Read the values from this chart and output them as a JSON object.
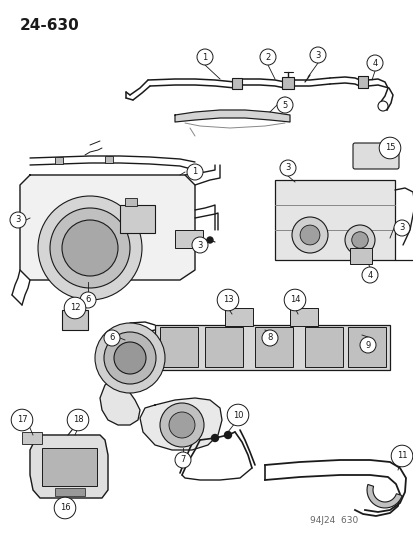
{
  "page_number": "24-630",
  "footer_code": "94J24  630",
  "background_color": "#ffffff",
  "line_color": "#1a1a1a",
  "figsize": [
    4.14,
    5.33
  ],
  "dpi": 100,
  "title_fontsize": 11,
  "footer_fontsize": 6.5
}
